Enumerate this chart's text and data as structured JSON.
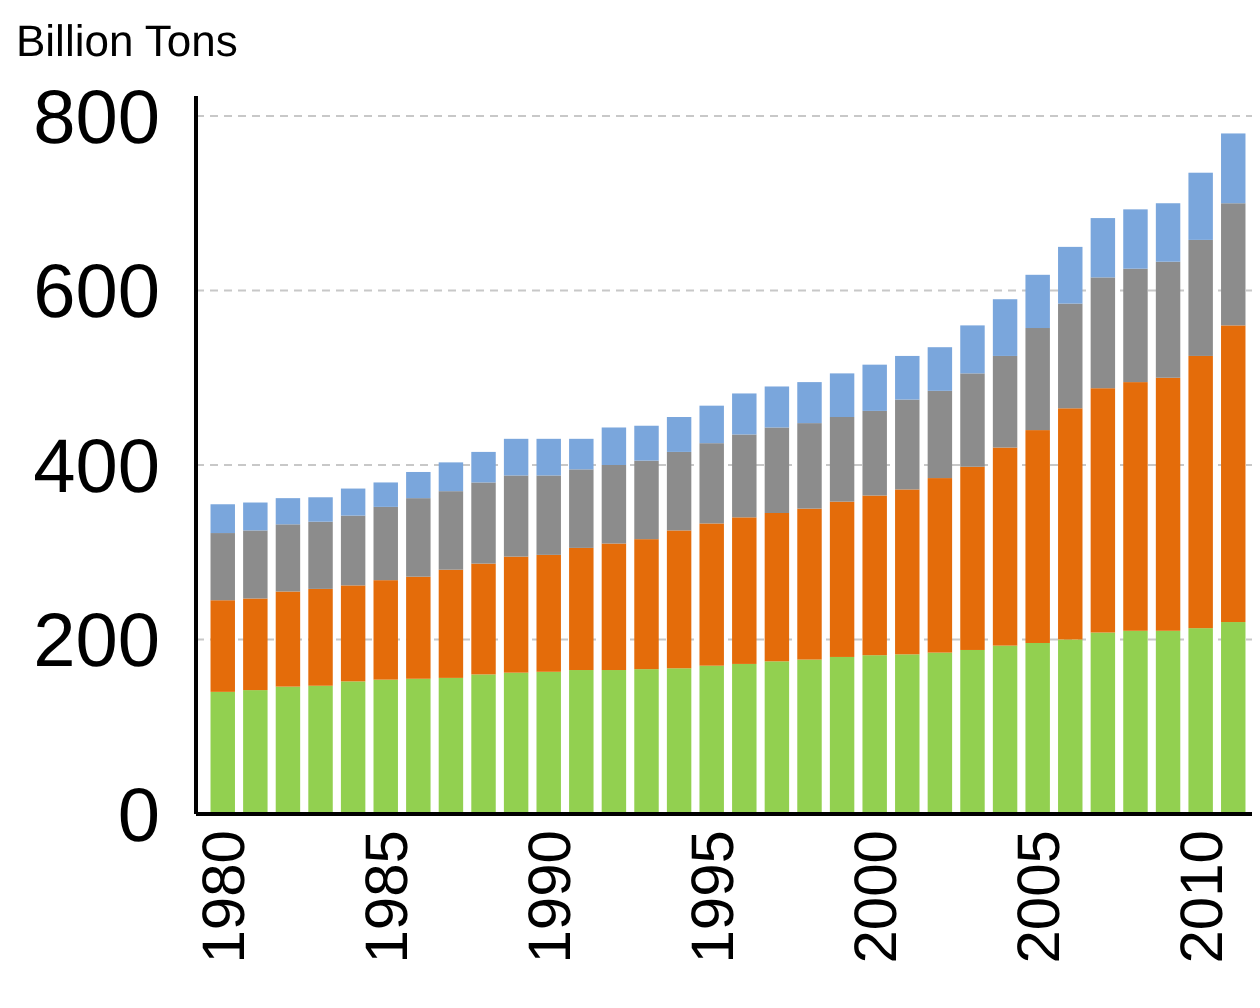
{
  "chart_data": {
    "type": "bar",
    "stacked": true,
    "ylabel": "Billion Tons",
    "categories": [
      "1980",
      null,
      null,
      null,
      null,
      "1985",
      null,
      null,
      null,
      null,
      "1990",
      null,
      null,
      null,
      null,
      "1995",
      null,
      null,
      null,
      null,
      "2000",
      null,
      null,
      null,
      null,
      "2005",
      null,
      null,
      null,
      null,
      "2010",
      null
    ],
    "series": [
      {
        "color": "#92d050",
        "values": [
          140,
          142,
          146,
          147,
          152,
          154,
          155,
          156,
          160,
          162,
          163,
          165,
          165,
          166,
          167,
          170,
          172,
          175,
          177,
          180,
          182,
          183,
          185,
          188,
          193,
          196,
          200,
          208,
          210,
          210,
          213,
          220
        ]
      },
      {
        "color": "#e46c0a",
        "values": [
          105,
          105,
          109,
          111,
          110,
          114,
          117,
          124,
          127,
          133,
          134,
          140,
          145,
          149,
          158,
          163,
          168,
          170,
          173,
          178,
          183,
          189,
          200,
          210,
          227,
          244,
          265,
          280,
          285,
          290,
          312,
          340
        ]
      },
      {
        "color": "#8c8c8c",
        "values": [
          77,
          78,
          77,
          77,
          80,
          84,
          90,
          90,
          93,
          93,
          91,
          90,
          90,
          90,
          90,
          92,
          95,
          98,
          98,
          97,
          97,
          103,
          100,
          107,
          105,
          117,
          120,
          127,
          130,
          133,
          133,
          140
        ]
      },
      {
        "color": "#7aa6dc",
        "values": [
          33,
          32,
          30,
          28,
          31,
          28,
          30,
          33,
          35,
          42,
          42,
          35,
          43,
          40,
          40,
          43,
          47,
          47,
          47,
          50,
          53,
          50,
          50,
          55,
          65,
          61,
          65,
          68,
          68,
          67,
          77,
          80
        ]
      }
    ],
    "ylim": [
      0,
      800
    ],
    "yticks": [
      0,
      200,
      400,
      600,
      800
    ],
    "grid": "y"
  }
}
